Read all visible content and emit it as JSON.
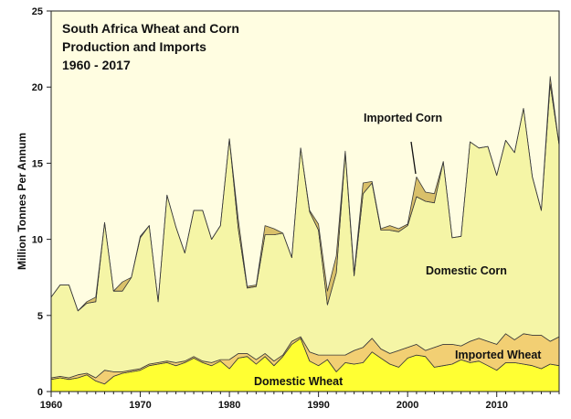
{
  "chart_data": {
    "type": "area",
    "title_lines": [
      "South Africa Wheat and Corn",
      "Production and Imports",
      "1960 - 2017"
    ],
    "xlabel": "",
    "ylabel": "Million Tonnes Per Annum",
    "xlim": [
      1960,
      2017
    ],
    "ylim": [
      0,
      25
    ],
    "x_ticks": [
      1960,
      1970,
      1980,
      1990,
      2000,
      2010
    ],
    "y_ticks": [
      0,
      5,
      10,
      15,
      20,
      25
    ],
    "grid": false,
    "stacked": true,
    "x": [
      1960,
      1961,
      1962,
      1963,
      1964,
      1965,
      1966,
      1967,
      1968,
      1969,
      1970,
      1971,
      1972,
      1973,
      1974,
      1975,
      1976,
      1977,
      1978,
      1979,
      1980,
      1981,
      1982,
      1983,
      1984,
      1985,
      1986,
      1987,
      1988,
      1989,
      1990,
      1991,
      1992,
      1993,
      1994,
      1995,
      1996,
      1997,
      1998,
      1999,
      2000,
      2001,
      2002,
      2003,
      2004,
      2005,
      2006,
      2007,
      2008,
      2009,
      2010,
      2011,
      2012,
      2013,
      2014,
      2015,
      2016,
      2017
    ],
    "series": [
      {
        "name": "Domestic Wheat",
        "color": "#ffff33",
        "values": [
          0.8,
          0.9,
          0.8,
          0.9,
          1.1,
          0.7,
          0.5,
          1.0,
          1.2,
          1.3,
          1.4,
          1.7,
          1.8,
          1.9,
          1.7,
          1.9,
          2.2,
          1.9,
          1.7,
          2.0,
          1.5,
          2.2,
          2.3,
          1.8,
          2.3,
          1.7,
          2.3,
          3.1,
          3.5,
          2.0,
          1.7,
          2.1,
          1.3,
          1.9,
          1.8,
          1.9,
          2.6,
          2.2,
          1.8,
          1.6,
          2.2,
          2.4,
          2.3,
          1.6,
          1.7,
          1.8,
          2.1,
          1.9,
          2.0,
          1.7,
          1.4,
          1.9,
          1.9,
          1.8,
          1.7,
          1.5,
          1.8,
          1.7
        ]
      },
      {
        "name": "Imported Wheat",
        "color": "#f2cf73",
        "values": [
          0.1,
          0.1,
          0.1,
          0.2,
          0.1,
          0.2,
          0.9,
          0.3,
          0.1,
          0.1,
          0.1,
          0.1,
          0.1,
          0.1,
          0.2,
          0.1,
          0.1,
          0.1,
          0.2,
          0.1,
          0.6,
          0.3,
          0.2,
          0.3,
          0.2,
          0.3,
          0.1,
          0.2,
          0.1,
          0.6,
          0.7,
          0.3,
          1.1,
          0.5,
          0.9,
          1.0,
          0.9,
          0.6,
          0.7,
          1.1,
          0.7,
          0.7,
          0.4,
          1.3,
          1.4,
          1.3,
          0.9,
          1.4,
          1.5,
          1.6,
          1.7,
          1.9,
          1.5,
          2.0,
          2.0,
          2.2,
          1.5,
          1.9
        ]
      },
      {
        "name": "Domestic Corn",
        "color": "#f5f5a6",
        "values": [
          5.3,
          6.0,
          6.1,
          4.2,
          4.6,
          5.0,
          9.7,
          5.3,
          5.3,
          6.1,
          8.6,
          9.1,
          4.0,
          10.9,
          8.9,
          7.1,
          9.6,
          9.9,
          8.1,
          8.8,
          14.5,
          8.2,
          4.3,
          4.8,
          7.8,
          8.3,
          8.0,
          5.5,
          12.4,
          9.2,
          8.2,
          3.3,
          5.4,
          13.3,
          4.9,
          10.1,
          10.2,
          7.8,
          8.1,
          7.8,
          8.0,
          9.7,
          9.8,
          9.5,
          12.0,
          7.0,
          7.2,
          13.1,
          12.5,
          12.8,
          11.1,
          12.7,
          12.3,
          14.8,
          10.4,
          8.2,
          16.9,
          12.6
        ]
      },
      {
        "name": "Imported Corn",
        "color": "#d9c06a",
        "values": [
          0,
          0,
          0,
          0,
          0.1,
          0.3,
          0,
          0,
          0.6,
          0,
          0.1,
          0,
          0,
          0,
          0,
          0,
          0,
          0,
          0,
          0,
          0,
          0.6,
          0.1,
          0.1,
          0.6,
          0.4,
          0,
          0,
          0,
          0.1,
          0.4,
          0.9,
          1.1,
          0.1,
          0.2,
          0.7,
          0.1,
          0.1,
          0.3,
          0.2,
          0.1,
          1.3,
          0.6,
          0.6,
          0,
          0,
          0,
          0,
          0,
          0,
          0,
          0,
          0,
          0,
          0,
          0,
          0.5,
          0
        ]
      }
    ],
    "annotations": [
      {
        "text": "Imported Corn"
      },
      {
        "text": "Domestic Corn"
      },
      {
        "text": "Imported Wheat"
      },
      {
        "text": "Domestic Wheat"
      }
    ],
    "plot_background": "#fffde1"
  }
}
